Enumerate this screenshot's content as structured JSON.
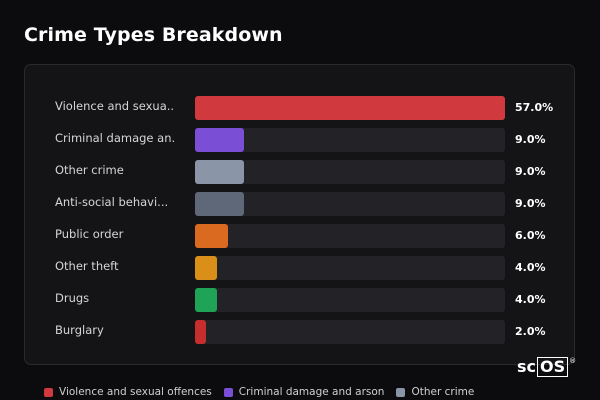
{
  "page": {
    "title": "Crime Types Breakdown"
  },
  "chart_data": {
    "type": "bar",
    "orientation": "horizontal",
    "title": "Crime Types Breakdown",
    "categories": [
      "Violence and sexua...",
      "Criminal damage an...",
      "Other crime",
      "Anti-social behavi...",
      "Public order",
      "Other theft",
      "Drugs",
      "Burglary"
    ],
    "values": [
      57.0,
      9.0,
      9.0,
      9.0,
      6.0,
      4.0,
      4.0,
      2.0
    ],
    "value_labels": [
      "57.0%",
      "9.0%",
      "9.0%",
      "9.0%",
      "6.0%",
      "4.0%",
      "4.0%",
      "2.0%"
    ],
    "colors": [
      "#d0393d",
      "#7a4fd6",
      "#8a96a8",
      "#5e6879",
      "#d96a1f",
      "#d98f18",
      "#1fa356",
      "#c62d2d"
    ],
    "xlim": [
      0,
      57
    ],
    "grid": false,
    "legend_position": "bottom"
  },
  "legend": [
    {
      "label": "Violence and sexual offences",
      "color": "#d0393d"
    },
    {
      "label": "Criminal damage and arson",
      "color": "#7a4fd6"
    },
    {
      "label": "Other crime",
      "color": "#8a96a8"
    }
  ],
  "logo": {
    "prefix": "sc",
    "boxed": "OS",
    "mark": "®"
  }
}
